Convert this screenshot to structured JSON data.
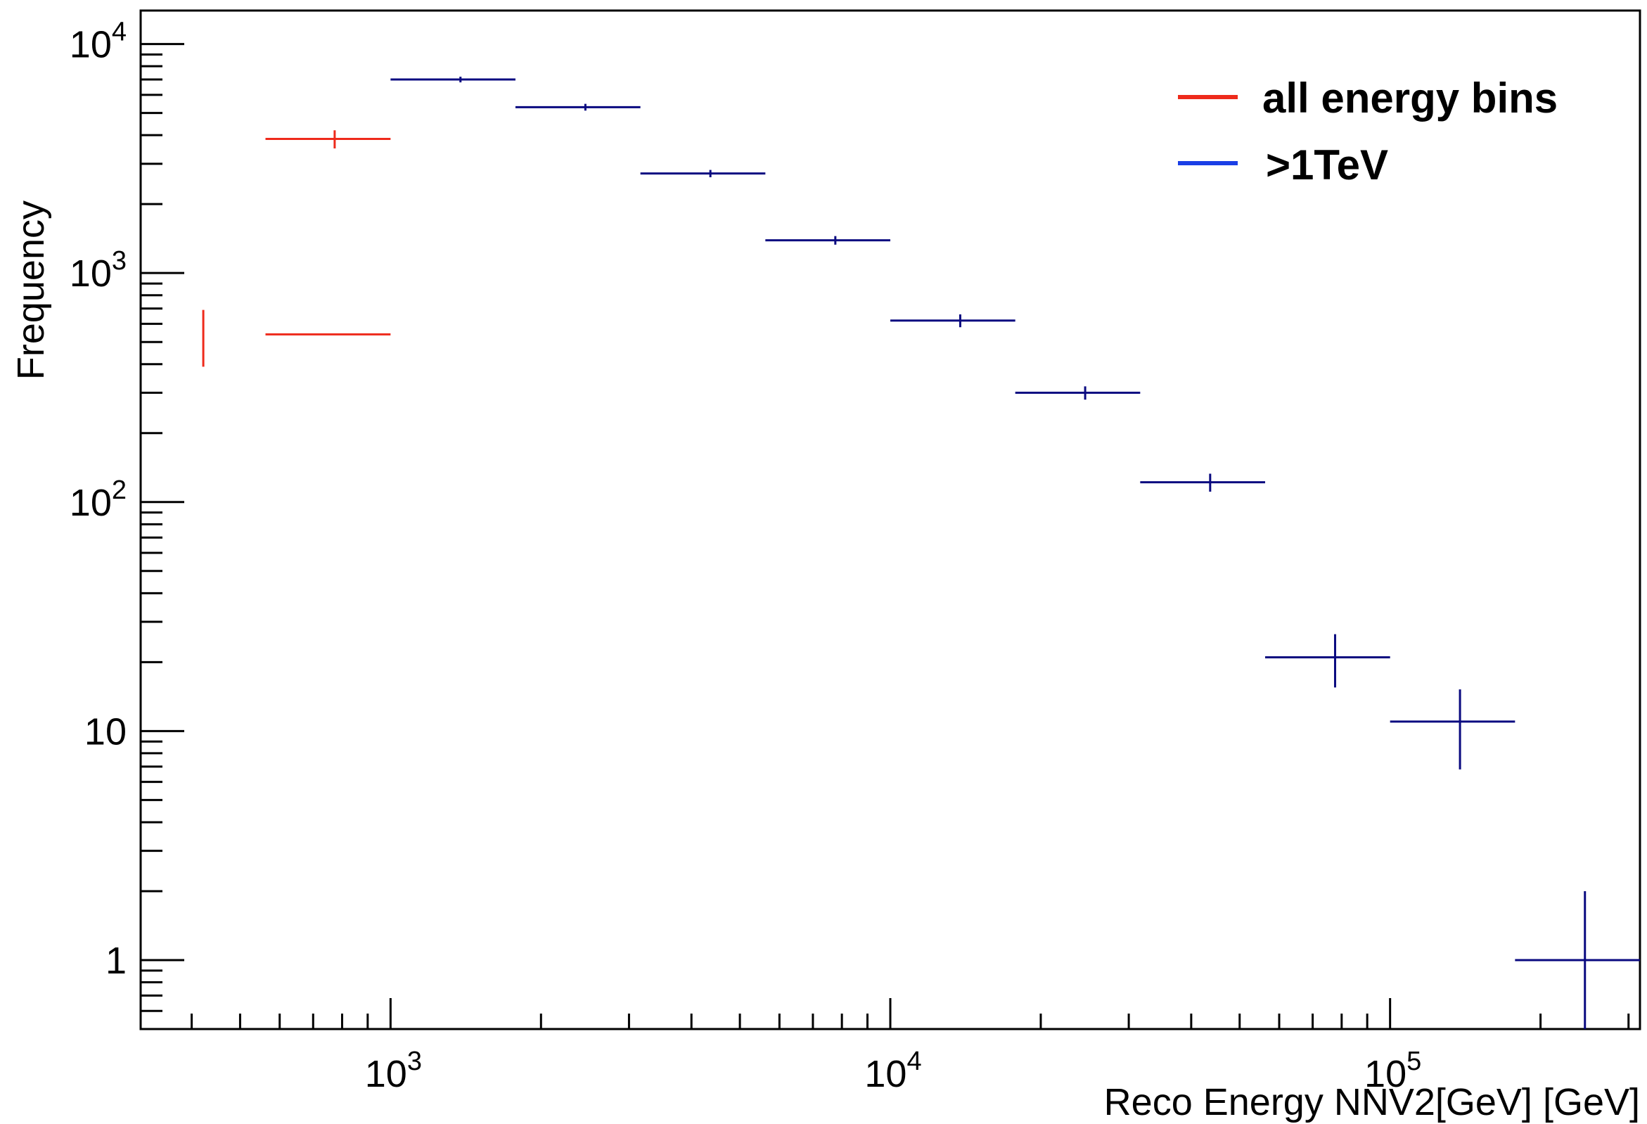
{
  "chart_data": {
    "type": "scatter",
    "xlabel": "Reco Energy NNV2[GeV] [GeV]",
    "ylabel": "Frequency",
    "xscale": "log",
    "yscale": "log",
    "xlim": [
      316.2,
      316228
    ],
    "ylim": [
      0.5,
      14000
    ],
    "grid": false,
    "legend_position": "top-right",
    "x_tick_labels": [
      {
        "value": 1000,
        "base": "10",
        "exp": "3"
      },
      {
        "value": 10000,
        "base": "10",
        "exp": "4"
      },
      {
        "value": 100000,
        "base": "10",
        "exp": "5"
      }
    ],
    "y_tick_labels": [
      {
        "value": 1,
        "base": "1",
        "exp": ""
      },
      {
        "value": 10,
        "base": "10",
        "exp": ""
      },
      {
        "value": 100,
        "base": "10",
        "exp": "2"
      },
      {
        "value": 1000,
        "base": "10",
        "exp": "3"
      },
      {
        "value": 10000,
        "base": "10",
        "exp": "4"
      }
    ],
    "series": [
      {
        "name": "all energy bins",
        "color": "#ee2a1b",
        "points": [
          {
            "xlow": 562,
            "xhigh": 1000,
            "x": 422,
            "y": 540,
            "ylow": 390,
            "yhigh": 690
          },
          {
            "xlow": 562,
            "xhigh": 1000,
            "x": 773,
            "y": 3850,
            "ylow": 3500,
            "yhigh": 4200
          }
        ]
      },
      {
        "name": ">1TeV",
        "color": "#0a0a80",
        "legend_color": "#1a3fe6",
        "points": [
          {
            "xlow": 1000,
            "xhigh": 1778,
            "x": 1380,
            "y": 7000,
            "ylow": 6800,
            "yhigh": 7200
          },
          {
            "xlow": 1778,
            "xhigh": 3162,
            "x": 2454,
            "y": 5300,
            "ylow": 5120,
            "yhigh": 5480
          },
          {
            "xlow": 3162,
            "xhigh": 5623,
            "x": 4365,
            "y": 2720,
            "ylow": 2620,
            "yhigh": 2820
          },
          {
            "xlow": 5623,
            "xhigh": 10000,
            "x": 7762,
            "y": 1390,
            "ylow": 1330,
            "yhigh": 1450
          },
          {
            "xlow": 10000,
            "xhigh": 17783,
            "x": 13800,
            "y": 620,
            "ylow": 580,
            "yhigh": 660
          },
          {
            "xlow": 17783,
            "xhigh": 31623,
            "x": 24540,
            "y": 300,
            "ylow": 280,
            "yhigh": 320
          },
          {
            "xlow": 31623,
            "xhigh": 56234,
            "x": 43650,
            "y": 122,
            "ylow": 111,
            "yhigh": 133
          },
          {
            "xlow": 56234,
            "xhigh": 100000,
            "x": 77620,
            "y": 21,
            "ylow": 15.5,
            "yhigh": 26.5
          },
          {
            "xlow": 100000,
            "xhigh": 177828,
            "x": 138000,
            "y": 11,
            "ylow": 6.8,
            "yhigh": 15.2
          },
          {
            "xlow": 177828,
            "xhigh": 316228,
            "x": 245400,
            "y": 1,
            "ylow": 0.5,
            "yhigh": 2
          }
        ]
      }
    ]
  }
}
